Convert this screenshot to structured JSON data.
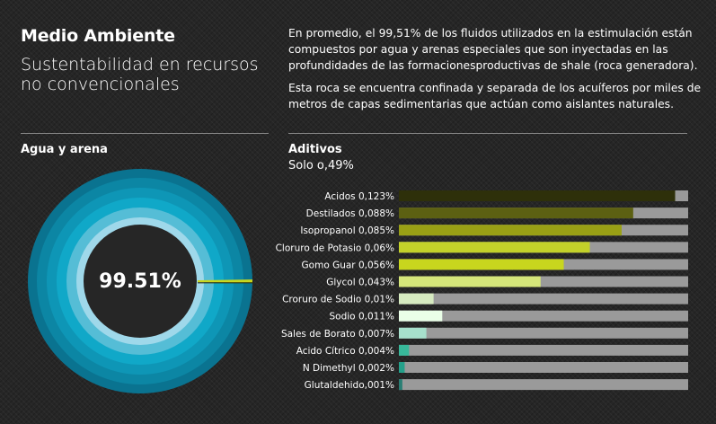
{
  "header": {
    "title": "Medio Ambiente",
    "subtitle": "Sustentabilidad en recursos no convencionales"
  },
  "intro": {
    "p1": "En promedio, el 99,51% de los fluidos utilizados en la estimulación están compuestos por agua y arenas especiales que son inyectadas en las profundidades de las formacionesproductivas de shale (roca generadora).",
    "p2": "Esta roca se encuentra confinada y separada de los acuíferos por miles de metros de capas sedimentarias que actúan como aislantes naturales."
  },
  "left_section": {
    "title": "Agua y arena"
  },
  "right_section": {
    "title": "Aditivos",
    "subtitle": "Solo o,49%"
  },
  "chart_data": [
    {
      "type": "pie",
      "title": "Agua y arena",
      "center_label": "99.51%",
      "values": [
        99.51,
        0.49
      ],
      "colors": [
        "#0b7e9b",
        "#c8d61e"
      ]
    },
    {
      "type": "bar",
      "title": "Aditivos",
      "subtitle": "Solo o,49%",
      "orientation": "horizontal",
      "categories": [
        "Acidos 0,123%",
        "Destilados 0,088%",
        "Isopropanol 0,085%",
        "Cloruro de Potasio 0,06%",
        "Gomo Guar 0,056%",
        "Glycol 0,043%",
        "Croruro de Sodio 0,01%",
        "Sodio 0,011%",
        "Sales de Borato 0,007%",
        "Acido Cítrico 0,004%",
        "N Dimethyl 0,002%",
        "Glutaldehido,001%"
      ],
      "values": [
        0.123,
        0.088,
        0.085,
        0.06,
        0.056,
        0.043,
        0.01,
        0.011,
        0.007,
        0.004,
        0.002,
        0.001
      ],
      "bar_fill_fraction": [
        0.955,
        0.81,
        0.77,
        0.66,
        0.57,
        0.49,
        0.12,
        0.15,
        0.095,
        0.035,
        0.02,
        0.012
      ],
      "colors": [
        "#2e300a",
        "#5c6012",
        "#99a015",
        "#c3d12a",
        "#c8d61e",
        "#d5e67a",
        "#d6eac0",
        "#eaffe8",
        "#a7e0cc",
        "#38b89a",
        "#24a08a",
        "#2a7e74"
      ],
      "track_color": "#9a9a9a"
    }
  ]
}
